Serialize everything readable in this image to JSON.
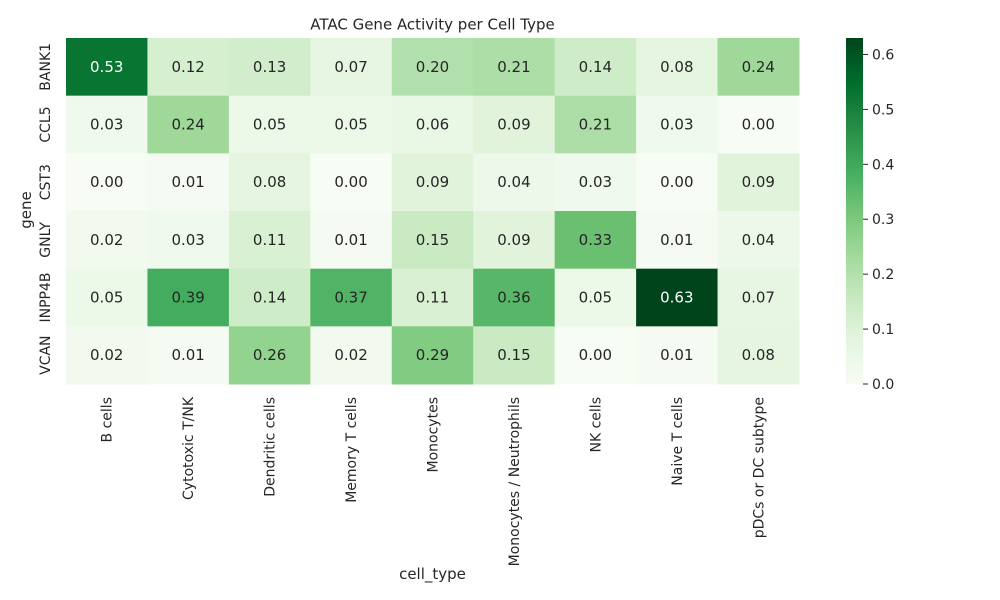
{
  "chart_data": {
    "type": "heatmap",
    "title": "ATAC Gene Activity per Cell Type",
    "xlabel": "cell_type",
    "ylabel": "gene",
    "x_categories": [
      "B cells",
      "Cytotoxic T/NK",
      "Dendritic cells",
      "Memory T cells",
      "Monocytes",
      "Monocytes / Neutrophils",
      "NK cells",
      "Naive T cells",
      "pDCs or DC subtype"
    ],
    "y_categories": [
      "BANK1",
      "CCL5",
      "CST3",
      "GNLY",
      "INPP4B",
      "VCAN"
    ],
    "values": [
      [
        0.53,
        0.12,
        0.13,
        0.07,
        0.2,
        0.21,
        0.14,
        0.08,
        0.24
      ],
      [
        0.03,
        0.24,
        0.05,
        0.05,
        0.06,
        0.09,
        0.21,
        0.03,
        0.0
      ],
      [
        0.0,
        0.01,
        0.08,
        0.0,
        0.09,
        0.04,
        0.03,
        0.0,
        0.09
      ],
      [
        0.02,
        0.03,
        0.11,
        0.01,
        0.15,
        0.09,
        0.33,
        0.01,
        0.04
      ],
      [
        0.05,
        0.39,
        0.14,
        0.37,
        0.11,
        0.36,
        0.05,
        0.63,
        0.07
      ],
      [
        0.02,
        0.01,
        0.26,
        0.02,
        0.29,
        0.15,
        0.0,
        0.01,
        0.08
      ]
    ],
    "colormap": "Greens",
    "vmin": 0,
    "vmax": 0.63,
    "colorbar_ticks": [
      "0.0",
      "0.1",
      "0.2",
      "0.3",
      "0.4",
      "0.5",
      "0.6"
    ],
    "colorbar_tick_values": [
      0,
      0.1,
      0.2,
      0.3,
      0.4,
      0.5,
      0.6
    ],
    "annotations_format": "0.00"
  }
}
